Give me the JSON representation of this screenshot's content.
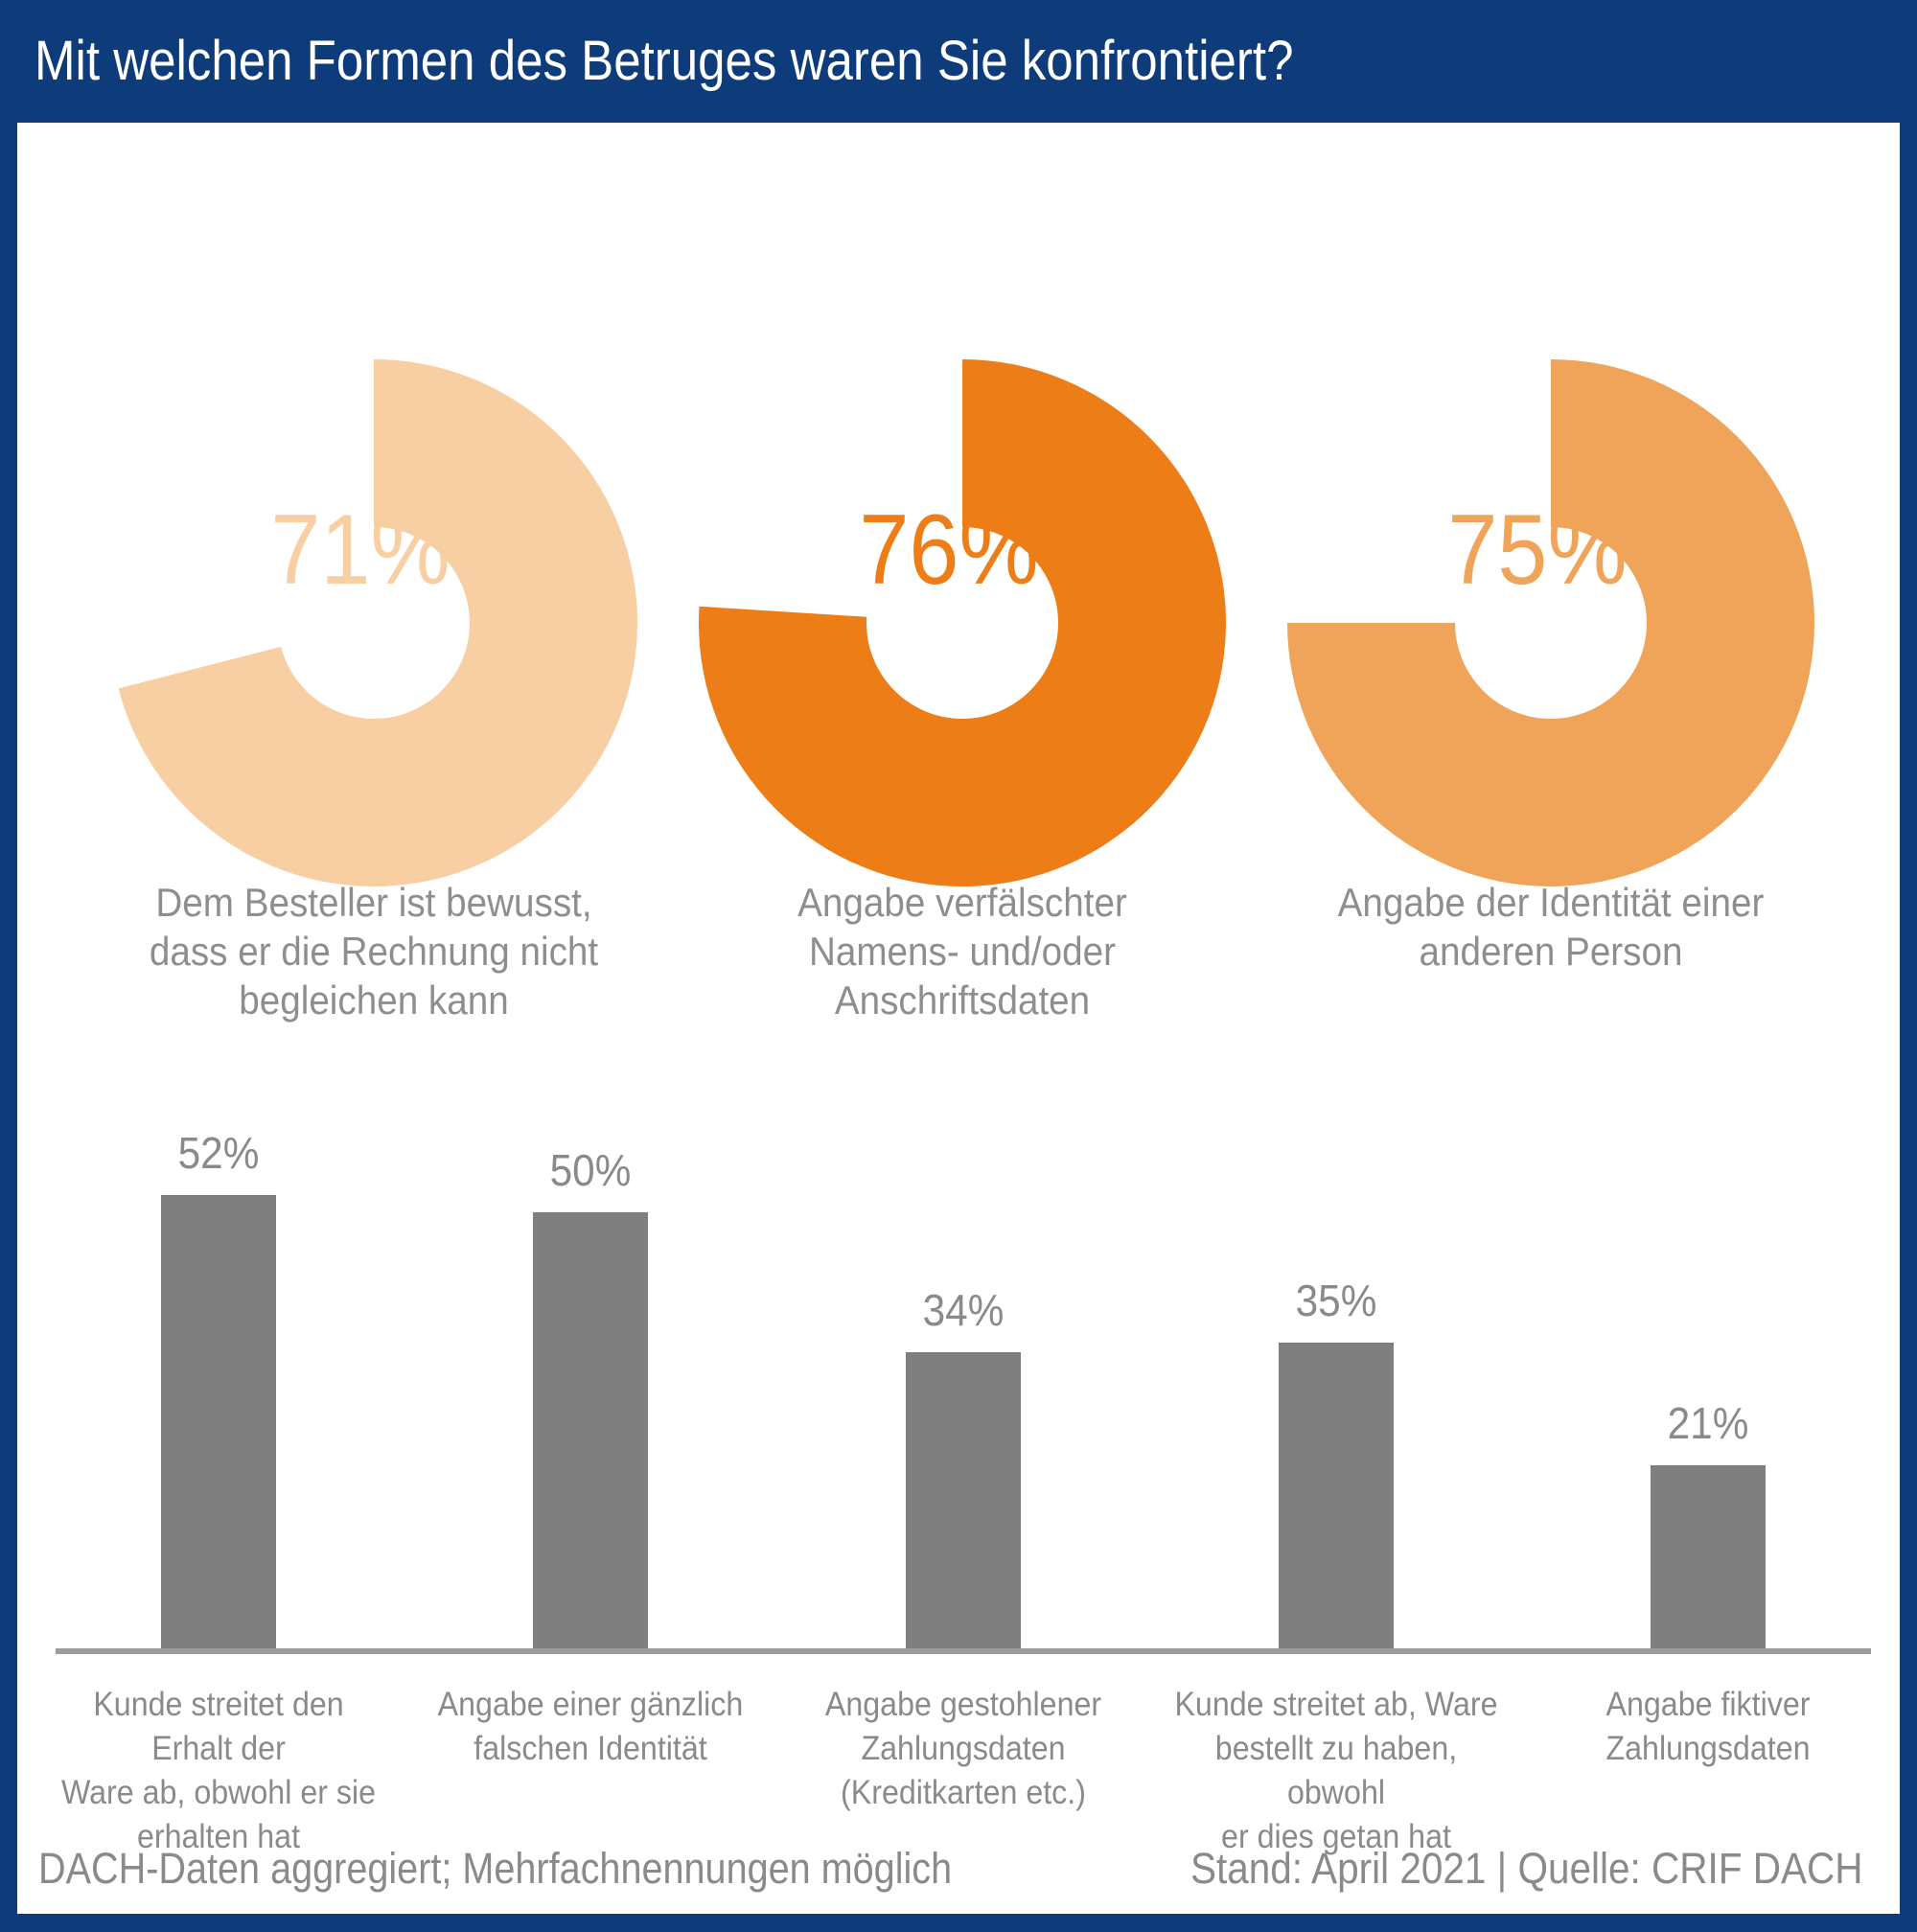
{
  "header": {
    "title": "Mit welchen Formen des Betruges waren Sie konfrontiert?",
    "bg_color": "#0E3C7A",
    "text_color": "#FFFFFF"
  },
  "chart_data": [
    {
      "type": "pie",
      "subtype": "donut-multiples",
      "unit": "%",
      "series": [
        {
          "name": "Dem Besteller ist bewusst,\ndass er die Rechnung nicht\nbegleichen kann",
          "value": 71,
          "color": "#F7CFA3"
        },
        {
          "name": "Angabe verfälschter\nNamens- und/oder\nAnschriftsdaten",
          "value": 76,
          "color": "#ED7D17"
        },
        {
          "name": "Angabe der Identität einer\nanderen Person",
          "value": 75,
          "color": "#F0A459"
        }
      ],
      "notes": "each donut starts at 12 o'clock and fills clockwise; value label inside hole"
    },
    {
      "type": "bar",
      "unit": "%",
      "categories": [
        "Kunde streitet den Erhalt der\nWare ab, obwohl er sie\nerhalten hat",
        "Angabe einer gänzlich\nfalschen Identität",
        "Angabe gestohlener\nZahlungsdaten\n(Kreditkarten etc.)",
        "Kunde streitet ab, Ware\nbestellt zu haben, obwohl\ner dies getan hat",
        "Angabe fiktiver\nZahlungsdaten"
      ],
      "values": [
        52,
        50,
        34,
        35,
        21
      ],
      "bar_color": "#7F7F7F",
      "axis_color": "#9B9B9B",
      "label_color": "#8A8A8A",
      "ylim": [
        0,
        55
      ],
      "grid": false,
      "legend": "none",
      "value_labels": [
        "52%",
        "50%",
        "34%",
        "35%",
        "21%"
      ]
    }
  ],
  "footer": {
    "left": "DACH-Daten aggregiert; Mehrfachnennungen möglich",
    "right": "Stand: April 2021 | Quelle: CRIF DACH"
  }
}
